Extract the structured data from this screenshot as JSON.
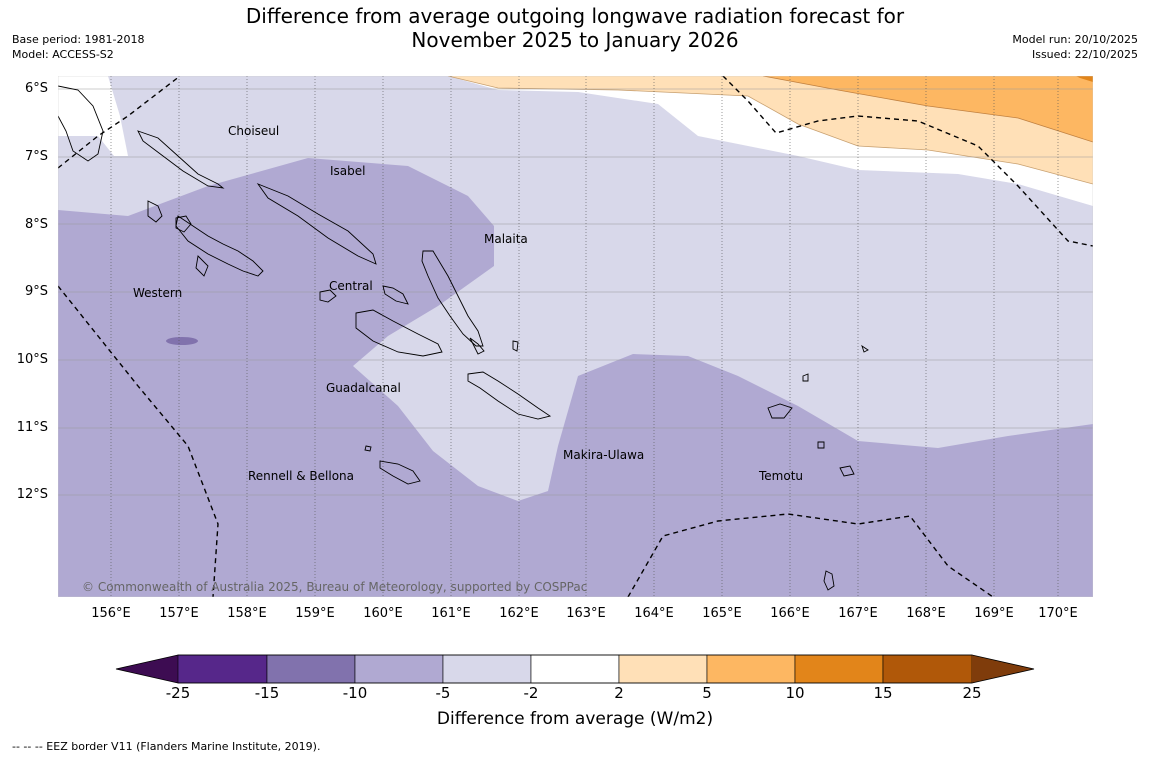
{
  "title_line1": "Difference from average outgoing longwave radiation forecast for",
  "title_line2": "November 2025 to January 2026",
  "base_period": "Base period: 1981-2018",
  "model": "Model: ACCESS-S2",
  "model_run": "Model run: 20/10/2025",
  "issued": "Issued: 22/10/2025",
  "latitudes": [
    "6°S",
    "7°S",
    "8°S",
    "9°S",
    "10°S",
    "11°S",
    "12°S"
  ],
  "longitudes": [
    "156°E",
    "157°E",
    "158°E",
    "159°E",
    "160°E",
    "161°E",
    "162°E",
    "163°E",
    "164°E",
    "165°E",
    "166°E",
    "167°E",
    "168°E",
    "169°E",
    "170°E"
  ],
  "regions": [
    "Choiseul",
    "Isabel",
    "Malaita",
    "Western",
    "Central",
    "Guadalcanal",
    "Makira-Ulawa",
    "Rennell & Bellona",
    "Temotu"
  ],
  "copyright": "© Commonwealth of Australia 2025, Bureau of Meteorology, supported by COSPPac",
  "colorbar": {
    "ticks": [
      "-25",
      "-15",
      "-10",
      "-5",
      "-2",
      "2",
      "5",
      "10",
      "15",
      "25"
    ],
    "colors": [
      "#3d0c52",
      "#56278a",
      "#8172ad",
      "#b0a9d2",
      "#d8d8ea",
      "#ffffff",
      "#ffe0b7",
      "#fdb762",
      "#e2851a",
      "#b05809",
      "#7f3c0b"
    ],
    "label": "Difference from average (W/m2)"
  },
  "footer": "--  --  -- EEZ border V11 (Flanders Marine Institute, 2019)."
}
